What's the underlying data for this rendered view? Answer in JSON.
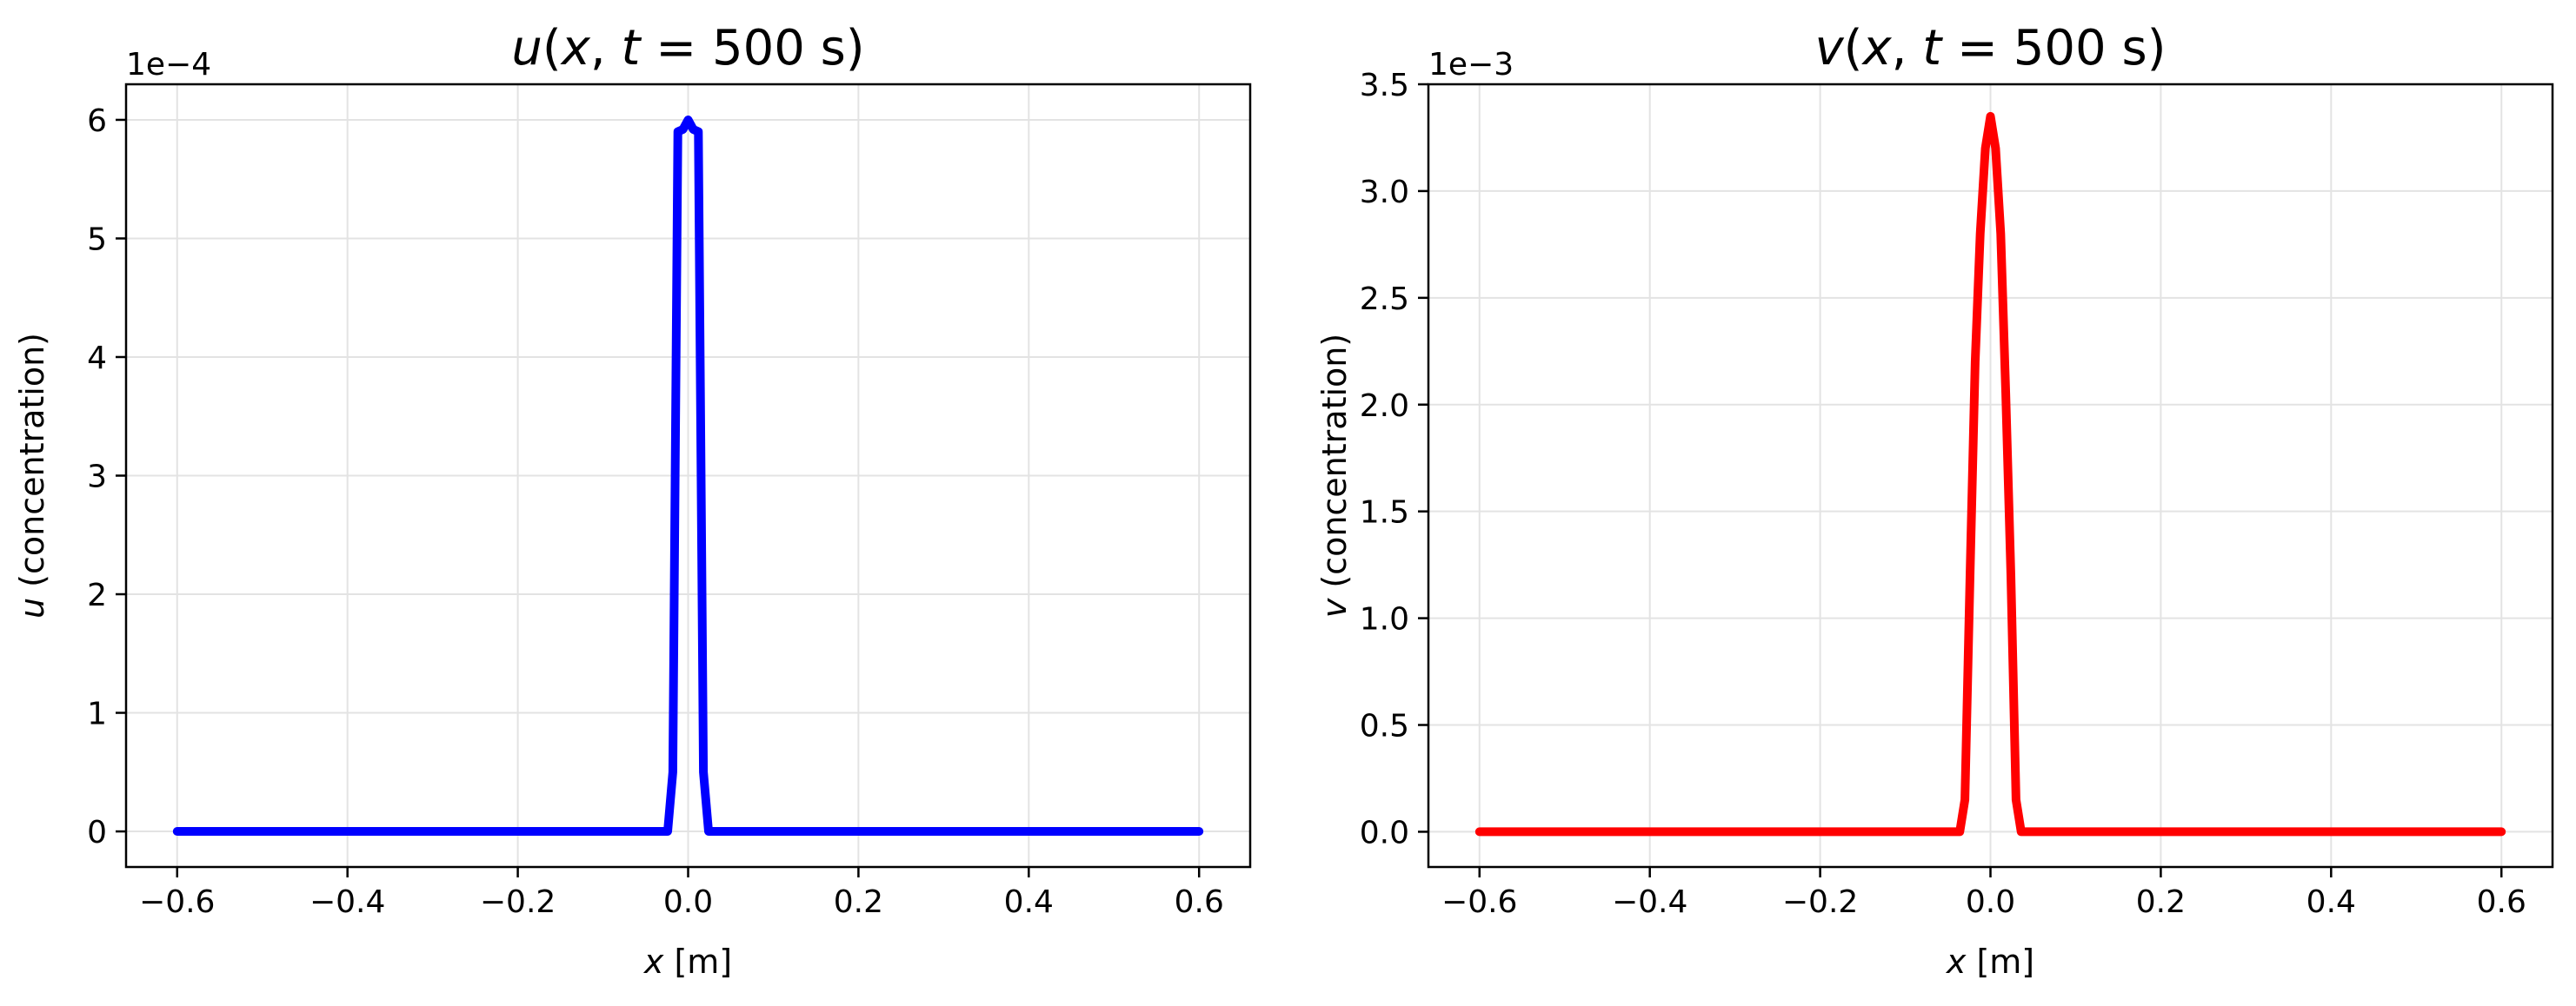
{
  "chart_data": [
    {
      "type": "line",
      "title": "u(x, t = 500 s)",
      "title_parts": {
        "var": "u",
        "open": "(",
        "x": "x",
        "comma": ", ",
        "t": "t",
        "eq": " = 500 s)"
      },
      "xlabel": "x [m]",
      "xlabel_parts": {
        "var": "x",
        "unit": " [m]"
      },
      "ylabel": "u (concentration)",
      "ylabel_parts": {
        "var": "u",
        "unit": " (concentration)"
      },
      "offset_text": "1e−4",
      "scale": 0.0001,
      "xlim": [
        -0.66,
        0.66
      ],
      "ylim": [
        -0.3,
        6.3
      ],
      "x_ticks": [
        -0.6,
        -0.4,
        -0.2,
        0.0,
        0.2,
        0.4,
        0.6
      ],
      "x_tick_labels": [
        "−0.6",
        "−0.4",
        "−0.2",
        "0.0",
        "0.2",
        "0.4",
        "0.6"
      ],
      "y_ticks": [
        0,
        1,
        2,
        3,
        4,
        5,
        6
      ],
      "y_tick_labels": [
        "0",
        "1",
        "2",
        "3",
        "4",
        "5",
        "6"
      ],
      "grid": true,
      "series": [
        {
          "color": "#0000ff",
          "x": [
            -0.6,
            -0.024,
            -0.018,
            -0.012,
            -0.006,
            0.0,
            0.006,
            0.012,
            0.018,
            0.024,
            0.6
          ],
          "y": [
            0,
            0,
            0.5,
            5.9,
            5.92,
            6.0,
            5.92,
            5.9,
            0.5,
            0,
            0
          ]
        }
      ]
    },
    {
      "type": "line",
      "title": "v(x, t = 500 s)",
      "title_parts": {
        "var": "v",
        "open": "(",
        "x": "x",
        "comma": ", ",
        "t": "t",
        "eq": " = 500 s)"
      },
      "xlabel": "x [m]",
      "xlabel_parts": {
        "var": "x",
        "unit": " [m]"
      },
      "ylabel": "v (concentration)",
      "ylabel_parts": {
        "var": "v",
        "unit": " (concentration)"
      },
      "offset_text": "1e−3",
      "scale": 0.001,
      "xlim": [
        -0.66,
        0.66
      ],
      "ylim": [
        -0.165,
        3.5
      ],
      "x_ticks": [
        -0.6,
        -0.4,
        -0.2,
        0.0,
        0.2,
        0.4,
        0.6
      ],
      "x_tick_labels": [
        "−0.6",
        "−0.4",
        "−0.2",
        "0.0",
        "0.2",
        "0.4",
        "0.6"
      ],
      "y_ticks": [
        0.0,
        0.5,
        1.0,
        1.5,
        2.0,
        2.5,
        3.0,
        3.5
      ],
      "y_tick_labels": [
        "0.0",
        "0.5",
        "1.0",
        "1.5",
        "2.0",
        "2.5",
        "3.0",
        "3.5"
      ],
      "grid": true,
      "series": [
        {
          "color": "#ff0000",
          "x": [
            -0.6,
            -0.036,
            -0.03,
            -0.024,
            -0.018,
            -0.012,
            -0.006,
            0.0,
            0.006,
            0.012,
            0.018,
            0.024,
            0.03,
            0.036,
            0.6
          ],
          "y": [
            0,
            0,
            0.15,
            1.2,
            2.2,
            2.8,
            3.2,
            3.35,
            3.2,
            2.8,
            2.05,
            1.2,
            0.15,
            0,
            0
          ]
        }
      ]
    }
  ]
}
